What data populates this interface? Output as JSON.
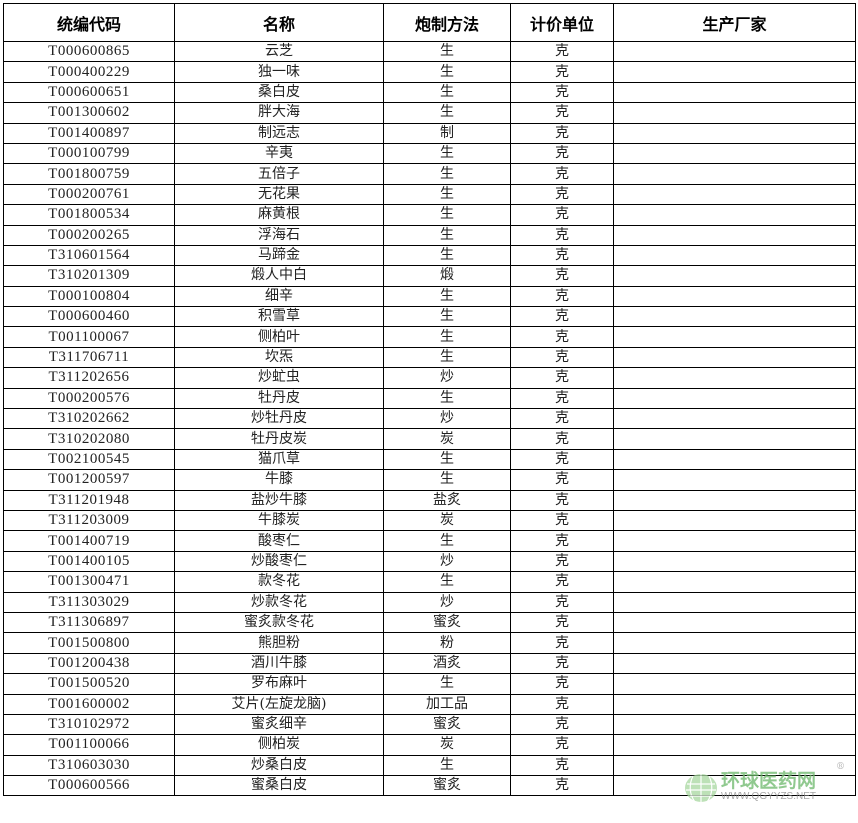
{
  "headers": [
    "统编代码",
    "名称",
    "炮制方法",
    "计价单位",
    "生产厂家"
  ],
  "rows": [
    [
      "T000600865",
      "云芝",
      "生",
      "克",
      ""
    ],
    [
      "T000400229",
      "独一味",
      "生",
      "克",
      ""
    ],
    [
      "T000600651",
      "桑白皮",
      "生",
      "克",
      ""
    ],
    [
      "T001300602",
      "胖大海",
      "生",
      "克",
      ""
    ],
    [
      "T001400897",
      "制远志",
      "制",
      "克",
      ""
    ],
    [
      "T000100799",
      "辛夷",
      "生",
      "克",
      ""
    ],
    [
      "T001800759",
      "五倍子",
      "生",
      "克",
      ""
    ],
    [
      "T000200761",
      "无花果",
      "生",
      "克",
      ""
    ],
    [
      "T001800534",
      "麻黄根",
      "生",
      "克",
      ""
    ],
    [
      "T000200265",
      "浮海石",
      "生",
      "克",
      ""
    ],
    [
      "T310601564",
      "马蹄金",
      "生",
      "克",
      ""
    ],
    [
      "T310201309",
      "煅人中白",
      "煅",
      "克",
      ""
    ],
    [
      "T000100804",
      "细辛",
      "生",
      "克",
      ""
    ],
    [
      "T000600460",
      "积雪草",
      "生",
      "克",
      ""
    ],
    [
      "T001100067",
      "侧柏叶",
      "生",
      "克",
      ""
    ],
    [
      "T311706711",
      "坎炁",
      "生",
      "克",
      ""
    ],
    [
      "T311202656",
      "炒虻虫",
      "炒",
      "克",
      ""
    ],
    [
      "T000200576",
      "牡丹皮",
      "生",
      "克",
      ""
    ],
    [
      "T310202662",
      "炒牡丹皮",
      "炒",
      "克",
      ""
    ],
    [
      "T310202080",
      "牡丹皮炭",
      "炭",
      "克",
      ""
    ],
    [
      "T002100545",
      "猫爪草",
      "生",
      "克",
      ""
    ],
    [
      "T001200597",
      "牛膝",
      "生",
      "克",
      ""
    ],
    [
      "T311201948",
      "盐炒牛膝",
      "盐炙",
      "克",
      ""
    ],
    [
      "T311203009",
      "牛膝炭",
      "炭",
      "克",
      ""
    ],
    [
      "T001400719",
      "酸枣仁",
      "生",
      "克",
      ""
    ],
    [
      "T001400105",
      "炒酸枣仁",
      "炒",
      "克",
      ""
    ],
    [
      "T001300471",
      "款冬花",
      "生",
      "克",
      ""
    ],
    [
      "T311303029",
      "炒款冬花",
      "炒",
      "克",
      ""
    ],
    [
      "T311306897",
      "蜜炙款冬花",
      "蜜炙",
      "克",
      ""
    ],
    [
      "T001500800",
      "熊胆粉",
      "粉",
      "克",
      ""
    ],
    [
      "T001200438",
      "酒川牛膝",
      "酒炙",
      "克",
      ""
    ],
    [
      "T001500520",
      "罗布麻叶",
      "生",
      "克",
      ""
    ],
    [
      "T001600002",
      "艾片(左旋龙脑)",
      "加工品",
      "克",
      ""
    ],
    [
      "T310102972",
      "蜜炙细辛",
      "蜜炙",
      "克",
      ""
    ],
    [
      "T001100066",
      "侧柏炭",
      "炭",
      "克",
      ""
    ],
    [
      "T310603030",
      "炒桑白皮",
      "生",
      "克",
      ""
    ],
    [
      "T000600566",
      "蜜桑白皮",
      "蜜炙",
      "克",
      ""
    ]
  ],
  "watermark": {
    "title": "环球医药网",
    "url": "WWW.QGYYZS.NET",
    "reg": "®",
    "color": "#6cb86a"
  }
}
